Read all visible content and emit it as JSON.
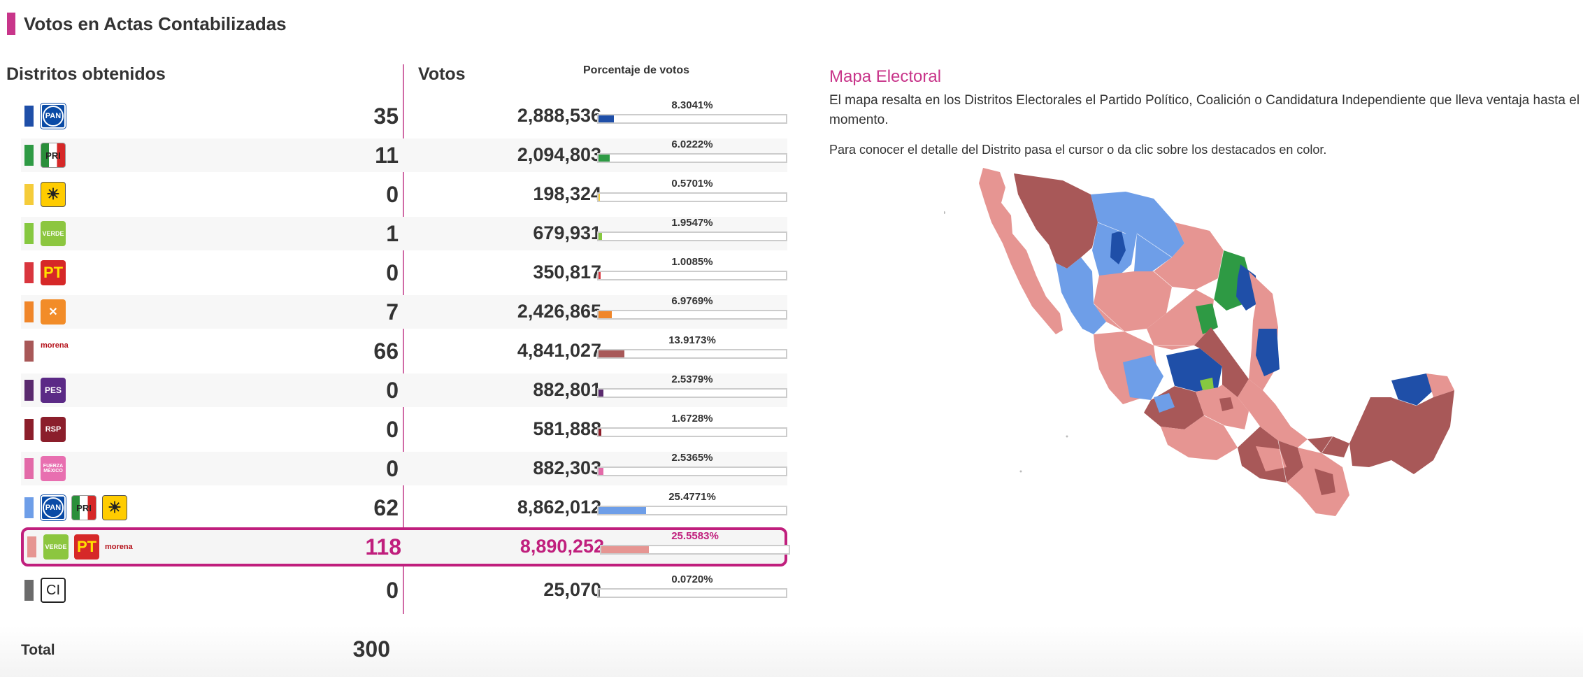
{
  "header": {
    "title": "Votos en Actas Contabilizadas",
    "accent": "#c8358a"
  },
  "columns": {
    "districts": "Distritos obtenidos",
    "votes": "Votos",
    "percent": "Porcentaje de votos"
  },
  "rows": [
    {
      "parties": [
        "PAN"
      ],
      "color": "#1f4fa8",
      "seats": "35",
      "votes": "2,888,536",
      "percent": "8.3041%",
      "share": 0.083041
    },
    {
      "parties": [
        "PRI"
      ],
      "color": "#2e9a44",
      "seats": "11",
      "votes": "2,094,803",
      "percent": "6.0222%",
      "share": 0.060222
    },
    {
      "parties": [
        "PRD"
      ],
      "color": "#f5cc3a",
      "seats": "0",
      "votes": "198,324",
      "percent": "0.5701%",
      "share": 0.005701
    },
    {
      "parties": [
        "VERDE"
      ],
      "color": "#86c840",
      "seats": "1",
      "votes": "679,931",
      "percent": "1.9547%",
      "share": 0.019547
    },
    {
      "parties": [
        "PT"
      ],
      "color": "#d9363e",
      "seats": "0",
      "votes": "350,817",
      "percent": "1.0085%",
      "share": 0.010085
    },
    {
      "parties": [
        "MC"
      ],
      "color": "#f0862a",
      "seats": "7",
      "votes": "2,426,865",
      "percent": "6.9769%",
      "share": 0.069769
    },
    {
      "parties": [
        "morena"
      ],
      "color": "#a85858",
      "seats": "66",
      "votes": "4,841,027",
      "percent": "13.9173%",
      "share": 0.139173
    },
    {
      "parties": [
        "PES"
      ],
      "color": "#5a2a6e",
      "seats": "0",
      "votes": "882,801",
      "percent": "2.5379%",
      "share": 0.025379
    },
    {
      "parties": [
        "RSP"
      ],
      "color": "#8c1e2a",
      "seats": "0",
      "votes": "581,888",
      "percent": "1.6728%",
      "share": 0.016728
    },
    {
      "parties": [
        "FXM"
      ],
      "color": "#e36aa8",
      "seats": "0",
      "votes": "882,303",
      "percent": "2.5365%",
      "share": 0.025365
    },
    {
      "parties": [
        "PAN",
        "PRI",
        "PRD"
      ],
      "color": "#6e9ee8",
      "seats": "62",
      "votes": "8,862,012",
      "percent": "25.4771%",
      "share": 0.254771
    },
    {
      "parties": [
        "VERDE",
        "PT",
        "morena"
      ],
      "color": "#e69592",
      "seats": "118",
      "votes": "8,890,252",
      "percent": "25.5583%",
      "share": 0.255583,
      "highlight": true
    },
    {
      "parties": [
        "CI"
      ],
      "color": "#6b6b6b",
      "seats": "0",
      "votes": "25,070",
      "percent": "0.0720%",
      "share": 0.00072
    }
  ],
  "total": {
    "label": "Total",
    "value": "300"
  },
  "map": {
    "title": "Mapa Electoral",
    "description": "El mapa resalta en los Distritos Electorales el Partido Político, Coalición o Candidatura Independiente que lleva ventaja hasta el momento.",
    "hint": "Para conocer el detalle del Distrito pasa el cursor o da clic sobre los destacados en color."
  },
  "logo_text": {
    "PAN": "PAN",
    "PRI": "PRI",
    "PRD": "☀",
    "VERDE": "VERDE",
    "PT": "PT",
    "MC": "✕",
    "morena": "morena",
    "PES": "PES",
    "RSP": "RSP",
    "FXM": "FUERZA MÉXICO",
    "CI": "CI"
  }
}
